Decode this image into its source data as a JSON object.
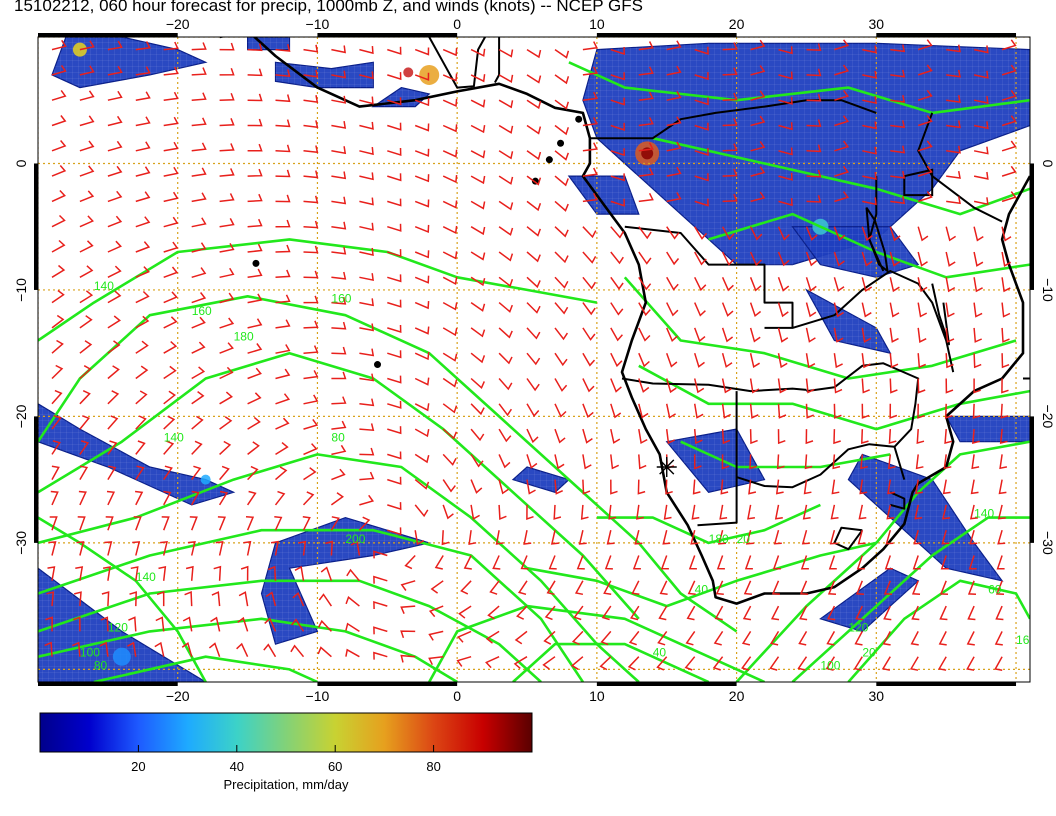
{
  "title": "15102212, 060 hour forecast for precip, 1000mb Z, and winds (knots) -- NCEP GFS",
  "map": {
    "lon_range": [
      -30,
      41
    ],
    "lat_range": [
      -41,
      10
    ],
    "lon_ticks": [
      {
        "value": -20,
        "label": "−20"
      },
      {
        "value": -10,
        "label": "−10"
      },
      {
        "value": 0,
        "label": "0"
      },
      {
        "value": 10,
        "label": "10"
      },
      {
        "value": 20,
        "label": "20"
      },
      {
        "value": 30,
        "label": "30"
      }
    ],
    "lat_ticks": [
      {
        "value": 0,
        "label": "0"
      },
      {
        "value": -10,
        "label": "−10"
      },
      {
        "value": -20,
        "label": "−20"
      },
      {
        "value": -30,
        "label": "−30"
      }
    ],
    "grid": true,
    "colors": {
      "wind_barbs": "#e8201c",
      "height_contours": "#22e81c",
      "coastlines": "#000000",
      "grid": "#d9a21b"
    },
    "contour_labels": [
      "140",
      "160",
      "180",
      "160",
      "80",
      "140",
      "200",
      "140",
      "120",
      "100",
      "80",
      "40",
      "40",
      "20",
      "20",
      "120",
      "100",
      "140",
      "160",
      "60",
      "180"
    ],
    "marker": {
      "symbol": "asterisk",
      "lon": 15,
      "lat": -24
    }
  },
  "colorbar": {
    "title": "Precipitation, mm/day",
    "range": [
      0,
      100
    ],
    "tick_labels": [
      {
        "value": 20,
        "label": "20"
      },
      {
        "value": 40,
        "label": "40"
      },
      {
        "value": 60,
        "label": "60"
      },
      {
        "value": 80,
        "label": "80"
      }
    ],
    "stops": [
      "#00008b",
      "#0000cd",
      "#1e5aff",
      "#1eaaff",
      "#3cd2c8",
      "#82d278",
      "#c8d232",
      "#e6a01e",
      "#dc4614",
      "#c80000",
      "#5a0000"
    ]
  }
}
